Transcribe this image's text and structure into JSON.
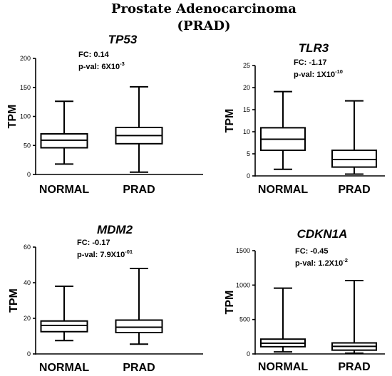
{
  "figure": {
    "title_line1": "Prostate Adenocarcinoma",
    "title_line2": "(PRAD)"
  },
  "chart_data": [
    {
      "type": "box",
      "title": "TP53",
      "fc_label": "FC: 0.14",
      "pval_label": "p-val: 6X10",
      "pval_exp": "-3",
      "ylabel": "TPM",
      "ylim": [
        0,
        200
      ],
      "yticks": [
        0,
        50,
        100,
        150,
        200
      ],
      "categories": [
        "NORMAL",
        "PRAD"
      ],
      "boxes": [
        {
          "min": 18,
          "q1": 46,
          "median": 59,
          "q3": 70,
          "max": 126
        },
        {
          "min": 4,
          "q1": 53,
          "median": 67,
          "q3": 81,
          "max": 151
        }
      ]
    },
    {
      "type": "box",
      "title": "TLR3",
      "fc_label": "FC: -1.17",
      "pval_label": "p-val: 1X10",
      "pval_exp": "-10",
      "ylabel": "TPM",
      "ylim": [
        0,
        25
      ],
      "yticks": [
        0,
        5,
        10,
        15,
        20,
        25
      ],
      "categories": [
        "NORMAL",
        "PRAD"
      ],
      "boxes": [
        {
          "min": 1.5,
          "q1": 5.8,
          "median": 8.3,
          "q3": 10.9,
          "max": 19.1
        },
        {
          "min": 0.4,
          "q1": 2.0,
          "median": 3.7,
          "q3": 5.8,
          "max": 17.0
        }
      ]
    },
    {
      "type": "box",
      "title": "MDM2",
      "fc_label": "FC: -0.17",
      "pval_label": "p-val: 7.9X10",
      "pval_exp": "-01",
      "ylabel": "TPM",
      "ylim": [
        0,
        60
      ],
      "yticks": [
        0,
        20,
        40,
        60
      ],
      "categories": [
        "NORMAL",
        "PRAD"
      ],
      "boxes": [
        {
          "min": 7.5,
          "q1": 12.5,
          "median": 16.0,
          "q3": 18.5,
          "max": 38.0
        },
        {
          "min": 5.5,
          "q1": 12.0,
          "median": 15.0,
          "q3": 19.0,
          "max": 48.0
        }
      ]
    },
    {
      "type": "box",
      "title": "CDKN1A",
      "fc_label": "FC: -0.45",
      "pval_label": "p-val: 1.2X10",
      "pval_exp": "-2",
      "ylabel": "TPM",
      "ylim": [
        0,
        1500
      ],
      "yticks": [
        0,
        500,
        1000,
        1500
      ],
      "categories": [
        "NORMAL",
        "PRAD"
      ],
      "boxes": [
        {
          "min": 30,
          "q1": 105,
          "median": 155,
          "q3": 215,
          "max": 955
        },
        {
          "min": 10,
          "q1": 55,
          "median": 110,
          "q3": 160,
          "max": 1065
        }
      ]
    }
  ]
}
